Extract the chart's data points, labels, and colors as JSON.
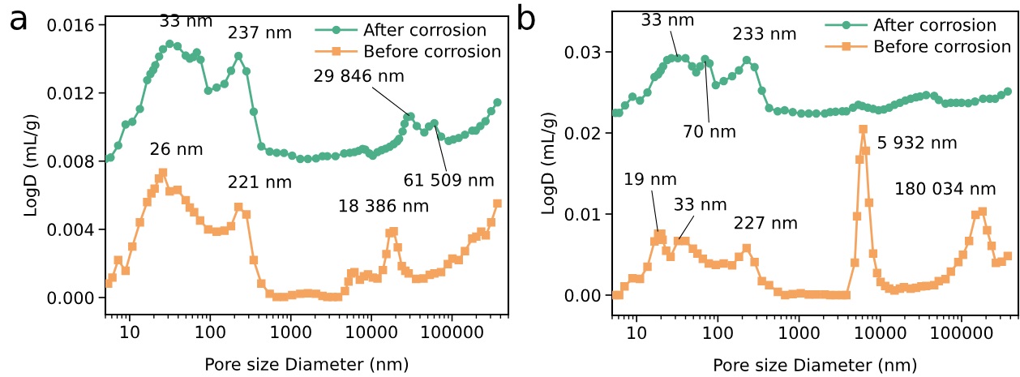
{
  "chart_data": [
    {
      "type": "line",
      "xlabel": "Pore size Diameter (nm)",
      "ylabel": "LogD (mL/g)",
      "log": "x",
      "legend": "top right",
      "xlim": [
        5,
        500000
      ],
      "xticks": [
        10,
        100,
        1000,
        10000,
        100000
      ],
      "ylim": [
        -0.001,
        0.0165
      ],
      "yticks": [
        {
          "value": 0,
          "label": "0.000"
        },
        {
          "value": 0.004,
          "label": "0.004"
        },
        {
          "value": 0.008,
          "label": "0.008"
        },
        {
          "value": 0.012,
          "label": "0.012"
        },
        {
          "value": 0.016,
          "label": "0.016"
        }
      ],
      "series": [
        {
          "name": "After corrosion",
          "color": "#4daf8a",
          "marker": "circle",
          "x": [
            5.0,
            5.8,
            7.2,
            8.9,
            10.8,
            13.4,
            16.5,
            18.1,
            19.6,
            20.8,
            23.2,
            25.9,
            31.4,
            39.3,
            49.6,
            55.7,
            61.7,
            68.1,
            75.9,
            94.2,
            120,
            150,
            181,
            224,
            281,
            346,
            430,
            546,
            668,
            823,
            1038,
            1309,
            1626,
            2051,
            2468,
            2838,
            3580,
            4585,
            5395,
            6153,
            6905,
            7762,
            8380,
            9419,
            10400,
            11880,
            13330,
            14970,
            16820,
            18890,
            20890,
            22050,
            24380,
            25750,
            27800,
            30750,
            36480,
            45300,
            51680,
            60300,
            73100,
            90800,
            103700,
            121000,
            144600,
            178200,
            196900,
            224500,
            260000,
            306000,
            365600
          ],
          "values": [
            0.00813,
            0.00821,
            0.00892,
            0.01015,
            0.01031,
            0.01106,
            0.01275,
            0.01311,
            0.01335,
            0.01363,
            0.01414,
            0.01457,
            0.01488,
            0.01474,
            0.01419,
            0.01401,
            0.01411,
            0.01438,
            0.01395,
            0.01213,
            0.01232,
            0.01253,
            0.0133,
            0.01417,
            0.01327,
            0.0109,
            0.00887,
            0.00856,
            0.00849,
            0.00848,
            0.00832,
            0.00813,
            0.00813,
            0.00816,
            0.00829,
            0.00829,
            0.00829,
            0.00845,
            0.00849,
            0.00853,
            0.0086,
            0.00872,
            0.00868,
            0.00845,
            0.00832,
            0.00853,
            0.00864,
            0.00873,
            0.00884,
            0.009,
            0.00916,
            0.00931,
            0.00974,
            0.01019,
            0.01058,
            0.01063,
            0.01006,
            0.00968,
            0.01003,
            0.01023,
            0.00944,
            0.00919,
            0.00927,
            0.00936,
            0.00955,
            0.00979,
            0.00979,
            0.01006,
            0.01034,
            0.01093,
            0.01145
          ]
        },
        {
          "name": "Before corrosion",
          "color": "#f5a45f",
          "marker": "square",
          "x": [
            5.4,
            6.1,
            7.2,
            8.9,
            10.8,
            13.4,
            16.5,
            18.6,
            20.4,
            23.1,
            25.9,
            31.4,
            39.3,
            49.6,
            55.7,
            63.1,
            74.8,
            94.2,
            120,
            150,
            181,
            224,
            281,
            346,
            430,
            546,
            668,
            823,
            1038,
            1309,
            1626,
            2051,
            2468,
            2838,
            3311,
            3864,
            4690,
            5188,
            5608,
            6153,
            7180,
            8070,
            9060,
            10400,
            11880,
            13870,
            15320,
            16820,
            18890,
            21220,
            23820,
            26360,
            28910,
            35880,
            44250,
            52870,
            60300,
            73100,
            88700,
            101100,
            121000,
            144600,
            178200,
            200000,
            230000,
            262400,
            306000,
            365600
          ],
          "values": [
            0.00082,
            0.00117,
            0.0022,
            0.00157,
            0.00299,
            0.00441,
            0.0056,
            0.00611,
            0.00639,
            0.00698,
            0.00734,
            0.00623,
            0.00631,
            0.00571,
            0.00528,
            0.005,
            0.00452,
            0.00399,
            0.00386,
            0.00392,
            0.00418,
            0.00531,
            0.00487,
            0.0022,
            0.00082,
            0.00022,
            3e-05,
            3e-05,
            0.00014,
            0.00022,
            0.00025,
            0.00022,
            9e-05,
            3e-05,
            3e-05,
            3e-05,
            0.00038,
            0.00093,
            0.00141,
            0.00149,
            0.00104,
            0.00125,
            0.00136,
            0.00117,
            0.00112,
            0.00161,
            0.00255,
            0.00378,
            0.00389,
            0.00294,
            0.00184,
            0.00157,
            0.00141,
            0.00109,
            0.00112,
            0.00133,
            0.00141,
            0.00149,
            0.00196,
            0.00228,
            0.0022,
            0.00272,
            0.00346,
            0.00357,
            0.00386,
            0.00365,
            0.00441,
            0.00552
          ]
        }
      ],
      "annotations": [
        "a",
        {
          "text": "33 nm",
          "x": 33,
          "y": 0.0149
        },
        {
          "text": "237 nm",
          "x": 224,
          "y": 0.0142
        },
        {
          "text": "29 846 nm",
          "x": 30750,
          "y": 0.0106
        },
        {
          "text": "61 509 nm",
          "x": 60300,
          "y": 0.0102
        },
        {
          "text": "26 nm",
          "x": 25.9,
          "y": 0.0073
        },
        {
          "text": "221 nm",
          "x": 224,
          "y": 0.0053
        },
        {
          "text": "18 386 nm",
          "x": 18890,
          "y": 0.0039
        }
      ]
    },
    {
      "type": "line",
      "xlabel": "Pore size Diameter (nm)",
      "ylabel": "LogD (mL/g)",
      "log": "x",
      "legend": "top right",
      "xlim": [
        5,
        500000
      ],
      "xticks": [
        10,
        100,
        1000,
        10000,
        100000
      ],
      "ylim": [
        -0.0025,
        0.035
      ],
      "yticks": [
        {
          "value": 0,
          "label": "0.00"
        },
        {
          "value": 0.01,
          "label": "0.01"
        },
        {
          "value": 0.02,
          "label": "0.02"
        },
        {
          "value": 0.03,
          "label": "0.03"
        }
      ],
      "series": [
        {
          "name": "After corrosion",
          "color": "#4daf8a",
          "marker": "circle",
          "x": [
            5.5,
            6.1,
            7.2,
            8.9,
            11.0,
            13.6,
            16.6,
            18.4,
            19.8,
            21.2,
            23.8,
            26.8,
            32.2,
            39.9,
            48.2,
            54.1,
            60.6,
            69.5,
            79.1,
            94.2,
            118,
            150,
            182,
            226,
            283,
            348,
            427,
            544,
            664,
            834,
            1063,
            1314,
            1627,
            2073,
            2415,
            2812,
            3400,
            3811,
            4607,
            5362,
            6012,
            7000,
            8150,
            9490,
            11040,
            12850,
            14960,
            17420,
            20280,
            23610,
            27480,
            30790,
            36640,
            46030,
            52360,
            63370,
            73780,
            85900,
            100000,
            121000,
            146300,
            183700,
            222200,
            258800,
            307700,
            370000
          ],
          "values": [
            0.02247,
            0.02247,
            0.0234,
            0.02447,
            0.024,
            0.025,
            0.0269,
            0.02723,
            0.02767,
            0.02823,
            0.029,
            0.02923,
            0.02923,
            0.02923,
            0.02823,
            0.02747,
            0.02823,
            0.02913,
            0.02857,
            0.0259,
            0.0264,
            0.027,
            0.02773,
            0.029,
            0.02813,
            0.02523,
            0.02307,
            0.02267,
            0.0228,
            0.02257,
            0.0224,
            0.0224,
            0.0224,
            0.0224,
            0.02257,
            0.02263,
            0.02267,
            0.02267,
            0.02313,
            0.02347,
            0.02333,
            0.02313,
            0.02297,
            0.0228,
            0.0229,
            0.02313,
            0.02347,
            0.02373,
            0.024,
            0.02423,
            0.0244,
            0.0245,
            0.02467,
            0.02457,
            0.02407,
            0.02363,
            0.02373,
            0.02373,
            0.02373,
            0.02367,
            0.02387,
            0.02423,
            0.02423,
            0.02423,
            0.02467,
            0.02513
          ]
        },
        {
          "name": "Before corrosion",
          "color": "#f5a45f",
          "marker": "square",
          "x": [
            5.5,
            6.1,
            7.1,
            8.9,
            11.0,
            13.6,
            16.6,
            18.4,
            20.1,
            20.9,
            23.1,
            26.2,
            32.2,
            39.9,
            49.3,
            56.1,
            65.3,
            77.2,
            94.2,
            118,
            150,
            182,
            226,
            283,
            348,
            427,
            548,
            673,
            834,
            1047,
            1314,
            1627,
            2073,
            2415,
            2812,
            3400,
            3811,
            4853,
            5164,
            5572,
            6152,
            6637,
            7270,
            8150,
            9125,
            10070,
            11460,
            12850,
            14960,
            17420,
            19500,
            23610,
            27480,
            32000,
            36640,
            46030,
            52360,
            63370,
            73780,
            91200,
            104000,
            123700,
            148600,
            181100,
            206000,
            234400,
            264500,
            312400,
            370000
          ],
          "values": [
            0.0,
            0.0,
            0.00107,
            0.00207,
            0.002,
            0.0035,
            0.00663,
            0.00757,
            0.00757,
            0.00683,
            0.00547,
            0.00473,
            0.00667,
            0.00667,
            0.00573,
            0.00513,
            0.00447,
            0.0039,
            0.00373,
            0.0039,
            0.00367,
            0.00473,
            0.0058,
            0.00407,
            0.00173,
            0.00123,
            0.0004,
            0.0,
            0.00013,
            0.00023,
            7e-05,
            7e-05,
            7e-05,
            0.0,
            0.0,
            0.0,
            0.0,
            0.004,
            0.00973,
            0.01673,
            0.02047,
            0.0178,
            0.0114,
            0.00513,
            0.00273,
            0.00163,
            0.00113,
            0.0008,
            0.00057,
            0.0008,
            0.00097,
            0.0008,
            0.0009,
            0.00107,
            0.00113,
            0.00123,
            0.00173,
            0.00197,
            0.0029,
            0.00407,
            0.00497,
            0.00667,
            0.0099,
            0.01033,
            0.008,
            0.00607,
            0.00397,
            0.00413,
            0.00483
          ]
        }
      ],
      "annotations": [
        "b",
        {
          "text": "33 nm",
          "x": 32.2,
          "y": 0.0292
        },
        {
          "text": "70 nm",
          "x": 69.5,
          "y": 0.0291
        },
        {
          "text": "233 nm",
          "x": 226,
          "y": 0.029
        },
        {
          "text": "5 932 nm",
          "x": 6152,
          "y": 0.0205
        },
        {
          "text": "19 nm",
          "x": 18.4,
          "y": 0.0076
        },
        {
          "text": "33 nm",
          "x": 32.2,
          "y": 0.0067
        },
        {
          "text": "227 nm",
          "x": 226,
          "y": 0.0058
        },
        {
          "text": "180 034 nm",
          "x": 181100,
          "y": 0.0103
        }
      ]
    }
  ]
}
